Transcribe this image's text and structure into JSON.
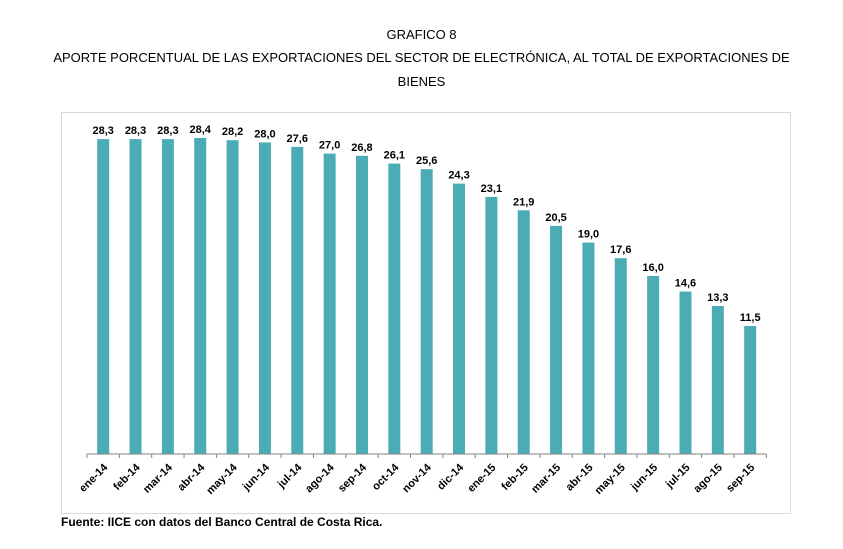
{
  "title": {
    "line1": "GRAFICO 8",
    "line2a": "APORTE PORCENTUAL DE LAS EXPORTACIONES DEL SECTOR DE ELECTRÓNICA, AL TOTAL DE EXPORTACIONES DE",
    "line2b": "BIENES"
  },
  "footer": "Fuente: IICE con datos del Banco Central de Costa Rica.",
  "colors": {
    "bar": "#4BACB6",
    "axis": "#808080",
    "frame": "#d9d9d9"
  },
  "chart_data": {
    "type": "bar",
    "title": "APORTE PORCENTUAL DE LAS EXPORTACIONES DEL SECTOR DE ELECTRÓNICA, AL TOTAL DE EXPORTACIONES DE BIENES",
    "categories": [
      "ene-14",
      "feb-14",
      "mar-14",
      "abr-14",
      "may-14",
      "jun-14",
      "jul-14",
      "ago-14",
      "sep-14",
      "oct-14",
      "nov-14",
      "dic-14",
      "ene-15",
      "feb-15",
      "mar-15",
      "abr-15",
      "may-15",
      "jun-15",
      "jul-15",
      "ago-15",
      "sep-15"
    ],
    "values": [
      28.3,
      28.3,
      28.3,
      28.4,
      28.2,
      28.0,
      27.6,
      27.0,
      26.8,
      26.1,
      25.6,
      24.3,
      23.1,
      21.9,
      20.5,
      19.0,
      17.6,
      16.0,
      14.6,
      13.3,
      11.5
    ],
    "data_labels": [
      "28,3",
      "28,3",
      "28,3",
      "28,4",
      "28,2",
      "28,0",
      "27,6",
      "27,0",
      "26,8",
      "26,1",
      "25,6",
      "24,3",
      "23,1",
      "21,9",
      "20,5",
      "19,0",
      "17,6",
      "16,0",
      "14,6",
      "13,3",
      "11,5"
    ],
    "ylim": [
      0,
      28.4
    ],
    "grid": false,
    "legend": "none",
    "xlabel": "",
    "ylabel": ""
  }
}
